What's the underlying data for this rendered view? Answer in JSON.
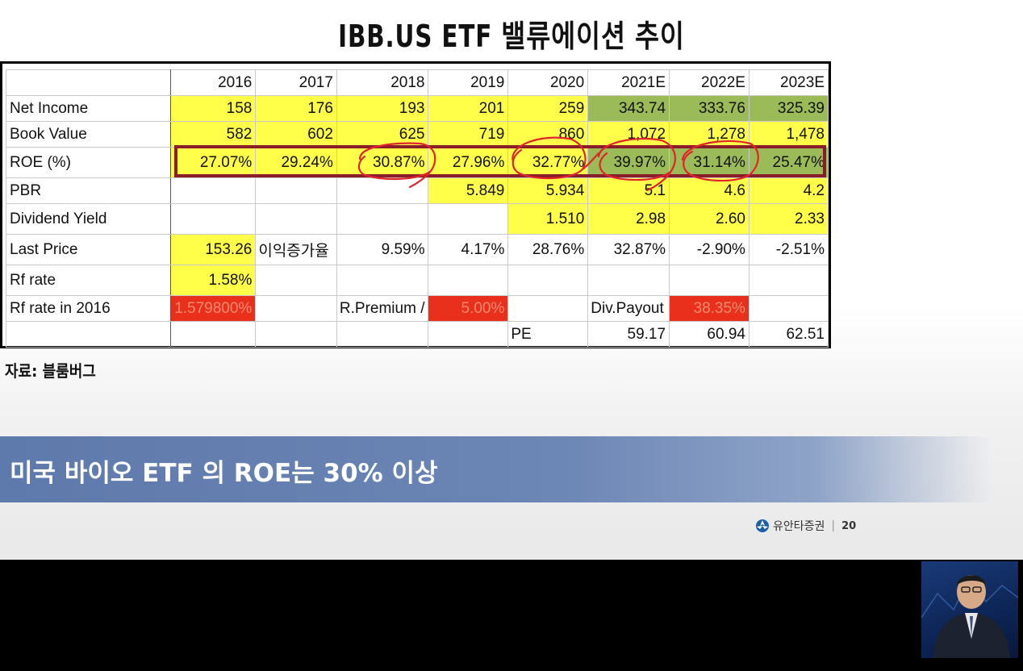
{
  "slide": {
    "title": "IBB.US  ETF  밸류에이션  추이",
    "source": "자료:  블룸버그",
    "banner": "미국 바이오 ETF 의 ROE는 30% 이상",
    "brand": "유안타증권",
    "page": "20"
  },
  "table": {
    "headers": [
      "",
      "2016",
      "2017",
      "2018",
      "2019",
      "2020",
      "2021E",
      "2022E",
      "2023E"
    ],
    "rows": [
      {
        "label": "Net Income",
        "cells": [
          "158",
          "176",
          "193",
          "201",
          "259",
          "343.74",
          "333.76",
          "325.39"
        ]
      },
      {
        "label": "Book Value",
        "cells": [
          "582",
          "602",
          "625",
          "719",
          "860",
          "1,072",
          "1,278",
          "1,478"
        ]
      },
      {
        "label": "ROE (%)",
        "cells": [
          "27.07%",
          "29.24%",
          "30.87%",
          "27.96%",
          "32.77%",
          "39.97%",
          "31.14%",
          "25.47%"
        ]
      },
      {
        "label": "PBR",
        "cells": [
          "",
          "",
          "",
          "5.849",
          "5.934",
          "5.1",
          "4.6",
          "4.2"
        ]
      },
      {
        "label": "Dividend Yield",
        "cells": [
          "",
          "",
          "",
          "",
          "1.510",
          "2.98",
          "2.60",
          "2.33"
        ]
      },
      {
        "label": "Last Price",
        "cells": [
          "153.26",
          "이익증가율",
          "9.59%",
          "4.17%",
          "28.76%",
          "32.87%",
          "-2.90%",
          "-2.51%"
        ]
      },
      {
        "label": "Rf rate",
        "cells": [
          "1.58%",
          "",
          "",
          "",
          "",
          "",
          "",
          ""
        ]
      },
      {
        "label": "Rf rate in 2016",
        "cells": [
          "1.579800%",
          "",
          "R.Premium /",
          "5.00%",
          "",
          "Div.Payout",
          "38.35%",
          ""
        ]
      },
      {
        "label": "",
        "cells": [
          "",
          "",
          "",
          "",
          "PE",
          "59.17",
          "60.94",
          "62.51"
        ]
      }
    ]
  },
  "colors": {
    "yellow": "#ffff4a",
    "green": "#9bbb59",
    "red": "#e8301c",
    "roe_highlight": "#8a1d2a",
    "annotation": "#e0242a",
    "banner": "#5e79ab"
  }
}
